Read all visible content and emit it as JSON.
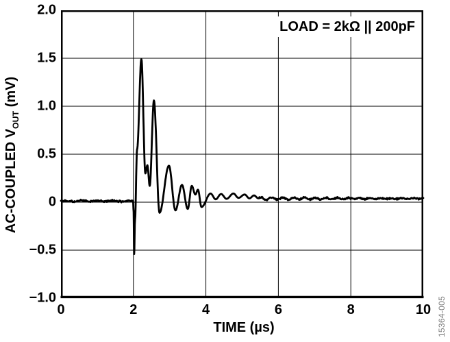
{
  "figure": {
    "background": "#ffffff",
    "watermark": "15364-005",
    "watermark_color": "#7a7a7a"
  },
  "chart_data": {
    "type": "line",
    "title": "",
    "xlabel": "TIME (µs)",
    "ylabel_prefix": "AC-COUPLED V",
    "ylabel_sub": "OUT",
    "ylabel_suffix": " (mV)",
    "annotation": "LOAD = 2kΩ || 200pF",
    "xlim": [
      0,
      10
    ],
    "ylim": [
      -1.0,
      2.0
    ],
    "grid": true,
    "grid_color": "#000000",
    "legend": "none",
    "line_color": "#000000",
    "line_width": 2.8,
    "x_ticks": [
      {
        "value": 0,
        "label": "0"
      },
      {
        "value": 2,
        "label": "2"
      },
      {
        "value": 4,
        "label": "4"
      },
      {
        "value": 6,
        "label": "6"
      },
      {
        "value": 8,
        "label": "8"
      },
      {
        "value": 10,
        "label": "10"
      }
    ],
    "y_ticks": [
      {
        "value": 2.0,
        "label": "2.0"
      },
      {
        "value": 1.5,
        "label": "1.5"
      },
      {
        "value": 1.0,
        "label": "1.0"
      },
      {
        "value": 0.5,
        "label": "0.5"
      },
      {
        "value": 0,
        "label": "0"
      },
      {
        "value": -0.5,
        "label": "−0.5"
      },
      {
        "value": -1.0,
        "label": "−1.0"
      }
    ],
    "series": [
      {
        "name": "AC-coupled VOUT transient (ringing at t = 2 µs)",
        "segments": [
          {
            "type": "noise",
            "t_start": 0,
            "t_end": 1.99,
            "mean": 0.012,
            "noise_amp": 0.011,
            "ripple_amp": 0.004,
            "ripple_period": 0.45,
            "ripple_decay": 0
          },
          {
            "type": "keypoints",
            "points": [
              [
                1.99,
                0.015
              ],
              [
                2.005,
                -0.1
              ],
              [
                2.02,
                -0.54
              ],
              [
                2.045,
                -0.18
              ],
              [
                2.1,
                0.55
              ],
              [
                2.22,
                1.49
              ],
              [
                2.33,
                0.3
              ],
              [
                2.385,
                0.385
              ],
              [
                2.45,
                0.17
              ],
              [
                2.565,
                1.06
              ],
              [
                2.72,
                -0.11
              ],
              [
                2.98,
                0.38
              ],
              [
                3.16,
                -0.085
              ],
              [
                3.34,
                0.18
              ],
              [
                3.5,
                -0.07
              ],
              [
                3.61,
                0.17
              ],
              [
                3.71,
                0.08
              ],
              [
                3.78,
                0.13
              ],
              [
                3.88,
                -0.05
              ],
              [
                4.13,
                0.09
              ],
              [
                4.27,
                0.03
              ],
              [
                4.42,
                0.085
              ],
              [
                4.57,
                0.035
              ],
              [
                4.76,
                0.09
              ],
              [
                4.9,
                0.045
              ],
              [
                5.07,
                0.08
              ],
              [
                5.2,
                0.04
              ],
              [
                5.33,
                0.07
              ],
              [
                5.45,
                0.04
              ]
            ]
          },
          {
            "type": "noise",
            "t_start": 5.45,
            "t_end": 10,
            "mean": 0.038,
            "noise_amp": 0.01,
            "ripple_amp": 0.016,
            "ripple_period": 0.3,
            "ripple_decay": 2.5
          }
        ]
      }
    ]
  }
}
